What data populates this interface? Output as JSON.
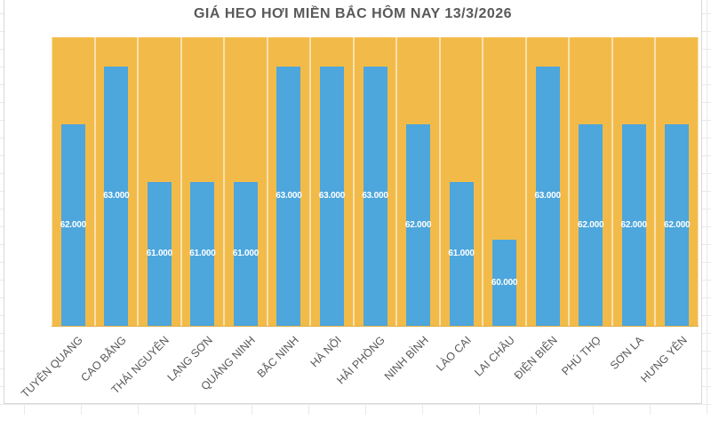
{
  "chart_data": {
    "type": "bar",
    "title": "GIÁ HEO HƠI MIỀN BẮC HÔM NAY 13/3/2026",
    "categories": [
      "TUYÊN QUANG",
      "CAO BẰNG",
      "THÁI NGUYÊN",
      "LẠNG SƠN",
      "QUẢNG NINH",
      "BẮC NINH",
      "HÀ NỘI",
      "HẢI PHÒNG",
      "NINH BÌNH",
      "LÀO CAI",
      "LAI CHÂU",
      "ĐIỆN BIÊN",
      "PHÚ THỌ",
      "SƠN LA",
      "HƯNG YÊN"
    ],
    "values": [
      62000,
      63000,
      61000,
      61000,
      61000,
      63000,
      63000,
      63000,
      62000,
      61000,
      60000,
      63000,
      62000,
      62000,
      62000
    ],
    "value_labels": [
      "62.000",
      "63.000",
      "61.000",
      "61.000",
      "61.000",
      "63.000",
      "63.000",
      "63.000",
      "62.000",
      "61.000",
      "60.000",
      "63.000",
      "62.000",
      "62.000",
      "62.000"
    ],
    "xlabel": "",
    "ylabel": "",
    "ylim": [
      58500,
      63500
    ],
    "grid": "vertical category separators",
    "legend": "none",
    "value_label_position": "inside-center",
    "colors": {
      "bar": "#4DA6DC",
      "plot_background": "#F2BB49",
      "value_label_text": "#FFFFFF",
      "axis_label_text": "#595959",
      "title_text": "#595959",
      "category_separator": "#FFFFFF"
    }
  }
}
